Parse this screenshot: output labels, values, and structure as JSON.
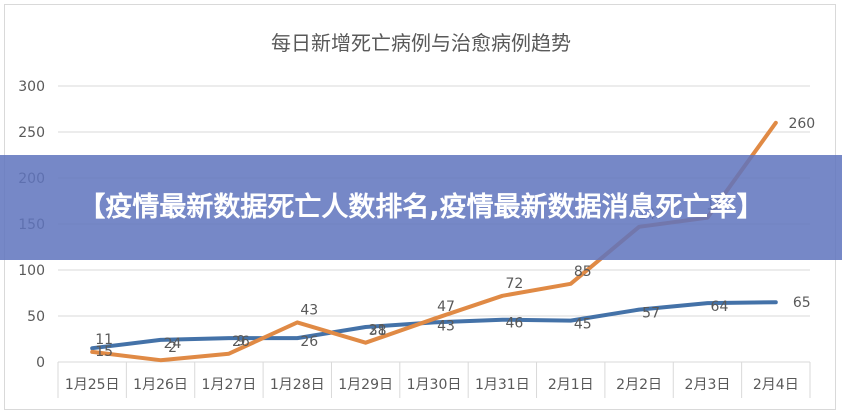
{
  "chart_data": {
    "type": "line",
    "title": "每日新增死亡病例与治愈病例趋势",
    "categories": [
      "1月25日",
      "1月26日",
      "1月27日",
      "1月28日",
      "1月29日",
      "1月30日",
      "1月31日",
      "2月1日",
      "2月2日",
      "2月3日",
      "2月4日"
    ],
    "series": [
      {
        "values": [
          15,
          24,
          26,
          26,
          38,
          43,
          46,
          45,
          57,
          64,
          65
        ],
        "color": "#4472a8"
      },
      {
        "values": [
          11,
          2,
          9,
          43,
          21,
          47,
          72,
          85,
          147,
          157,
          260
        ],
        "color": "#e08a45"
      }
    ],
    "ylim": [
      0,
      300
    ],
    "yticks": [
      0,
      50,
      100,
      150,
      200,
      250,
      300
    ],
    "grid": true
  },
  "banner": {
    "text": "【疫情最新数据死亡人数排名,疫情最新数据消息死亡率】"
  }
}
